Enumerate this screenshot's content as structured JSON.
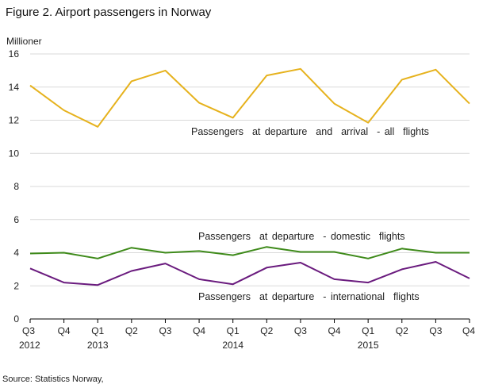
{
  "figure": {
    "title": "Figure 2. Airport passengers in Norway",
    "source": "Source: Statistics Norway,"
  },
  "chart_data": {
    "type": "line",
    "title": "Figure 2. Airport passengers in Norway",
    "ylabel": "Millioner",
    "xlabel": "",
    "ylim": [
      0,
      16
    ],
    "yticks": [
      0,
      2,
      4,
      6,
      8,
      10,
      12,
      14,
      16
    ],
    "grid": true,
    "quarters": [
      "Q3",
      "Q4",
      "Q1",
      "Q2",
      "Q3",
      "Q4",
      "Q1",
      "Q2",
      "Q3",
      "Q4",
      "Q1",
      "Q2",
      "Q3",
      "Q4"
    ],
    "years": [
      "2012",
      "",
      "2013",
      "",
      "",
      "",
      "2014",
      "",
      "",
      "",
      "2015",
      "",
      "",
      ""
    ],
    "categories": [
      "Q3 2012",
      "Q4 2012",
      "Q1 2013",
      "Q2 2013",
      "Q3 2013",
      "Q4 2013",
      "Q1 2014",
      "Q2 2014",
      "Q3 2014",
      "Q4 2014",
      "Q1 2015",
      "Q2 2015",
      "Q3 2015",
      "Q4 2015"
    ],
    "series": [
      {
        "name": "Passengers  at departure  and  arrival  - all  flights",
        "color": "#e6b21d",
        "values": [
          14.1,
          12.6,
          11.6,
          14.35,
          15.0,
          13.05,
          12.15,
          14.7,
          15.1,
          13.0,
          11.85,
          14.45,
          15.05,
          13.0
        ]
      },
      {
        "name": "Passengers  at departure  - domestic  flights",
        "color": "#3e8a1a",
        "values": [
          3.95,
          4.0,
          3.65,
          4.3,
          4.0,
          4.1,
          3.85,
          4.35,
          4.05,
          4.05,
          3.65,
          4.25,
          4.0,
          4.0
        ]
      },
      {
        "name": "Passengers  at departure  - international  flights",
        "color": "#6a1b7e",
        "values": [
          3.05,
          2.2,
          2.05,
          2.9,
          3.35,
          2.4,
          2.1,
          3.1,
          3.4,
          2.4,
          2.2,
          3.0,
          3.45,
          2.45
        ]
      }
    ]
  }
}
